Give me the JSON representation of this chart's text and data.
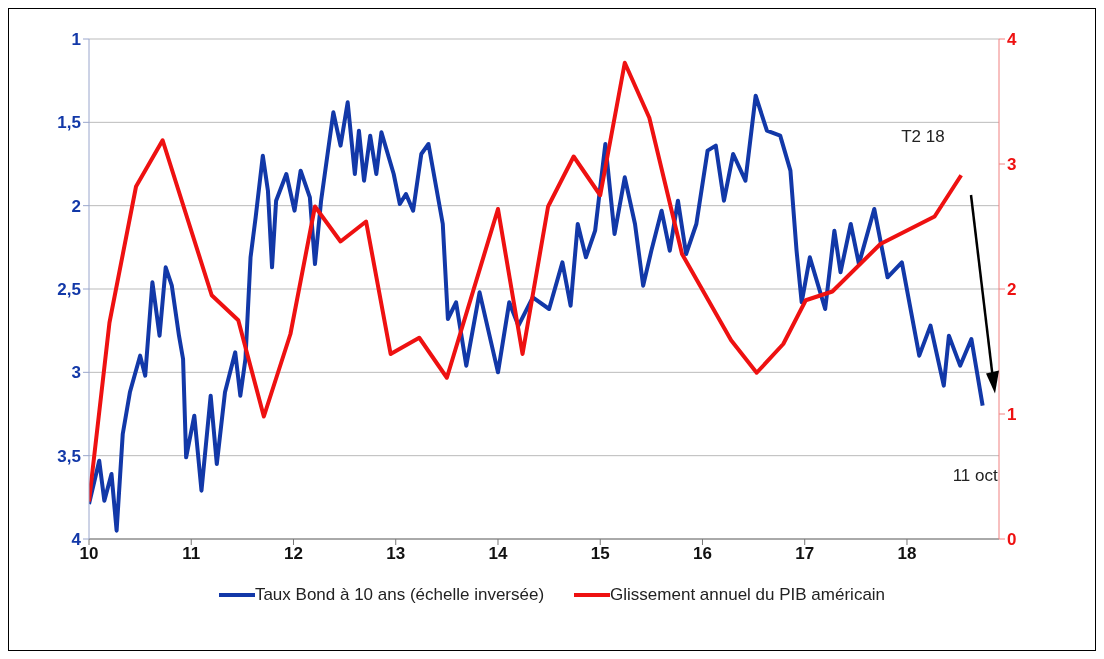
{
  "chart_data": {
    "type": "line",
    "xlim": [
      10,
      18.9
    ],
    "xticks": [
      10,
      11,
      12,
      13,
      14,
      15,
      16,
      17,
      18
    ],
    "ylim": [
      4,
      1
    ],
    "yticks": [
      1,
      {
        "value": 1.5,
        "label": "1,5"
      },
      2,
      {
        "value": 2.5,
        "label": "2,5"
      },
      3,
      {
        "value": 3.5,
        "label": "3,5"
      },
      4
    ],
    "y2lim": [
      0,
      4
    ],
    "y2ticks": [
      0,
      1,
      2,
      3,
      4
    ],
    "grid": "y",
    "legend": "bottom",
    "annotations": [
      "T2 18",
      "11 oct"
    ],
    "series": [
      {
        "name": "Taux Bond à 10 ans (échelle inversée)",
        "color": "#1238a8",
        "x": [
          10.0,
          10.1,
          10.15,
          10.22,
          10.27,
          10.33,
          10.4,
          10.5,
          10.55,
          10.62,
          10.69,
          10.75,
          10.81,
          10.88,
          10.92,
          10.95,
          11.03,
          11.1,
          11.19,
          11.25,
          11.33,
          11.43,
          11.48,
          11.53,
          11.58,
          11.63,
          11.7,
          11.75,
          11.79,
          11.83,
          11.93,
          12.01,
          12.07,
          12.16,
          12.21,
          12.27,
          12.39,
          12.46,
          12.53,
          12.6,
          12.64,
          12.69,
          12.75,
          12.81,
          12.86,
          12.98,
          13.04,
          13.1,
          13.17,
          13.25,
          13.32,
          13.46,
          13.51,
          13.59,
          13.69,
          13.82,
          14.0,
          14.11,
          14.2,
          14.34,
          14.5,
          14.63,
          14.71,
          14.78,
          14.86,
          14.95,
          15.05,
          15.14,
          15.24,
          15.34,
          15.42,
          15.5,
          15.6,
          15.68,
          15.76,
          15.84,
          15.94,
          16.05,
          16.13,
          16.21,
          16.3,
          16.42,
          16.52,
          16.63,
          16.76,
          16.86,
          16.92,
          16.97,
          17.05,
          17.2,
          17.29,
          17.35,
          17.45,
          17.53,
          17.68,
          17.81,
          17.95,
          18.12,
          18.23,
          18.36,
          18.41,
          18.52,
          18.63,
          18.74
        ],
        "values": [
          3.79,
          3.53,
          3.77,
          3.61,
          3.95,
          3.37,
          3.12,
          2.9,
          3.02,
          2.46,
          2.78,
          2.37,
          2.48,
          2.78,
          2.92,
          3.51,
          3.26,
          3.71,
          3.14,
          3.55,
          3.12,
          2.88,
          3.14,
          2.92,
          2.31,
          2.07,
          1.7,
          1.91,
          2.37,
          1.97,
          1.81,
          2.03,
          1.79,
          1.95,
          2.35,
          1.97,
          1.44,
          1.64,
          1.38,
          1.81,
          1.55,
          1.85,
          1.58,
          1.81,
          1.56,
          1.81,
          1.99,
          1.93,
          2.03,
          1.69,
          1.63,
          2.11,
          2.68,
          2.58,
          2.96,
          2.52,
          3.0,
          2.58,
          2.72,
          2.55,
          2.62,
          2.34,
          2.6,
          2.11,
          2.31,
          2.15,
          1.63,
          2.17,
          1.83,
          2.11,
          2.48,
          2.27,
          2.03,
          2.27,
          1.97,
          2.29,
          2.11,
          1.67,
          1.64,
          1.97,
          1.69,
          1.85,
          1.34,
          1.55,
          1.58,
          1.79,
          2.27,
          2.58,
          2.31,
          2.62,
          2.15,
          2.4,
          2.11,
          2.35,
          2.02,
          2.43,
          2.34,
          2.9,
          2.72,
          3.08,
          2.78,
          2.96,
          2.8,
          3.2
        ]
      },
      {
        "name": "Glissement annuel du PIB américain",
        "color": "#ee1111",
        "axis": "y2",
        "x": [
          10.0,
          10.2,
          10.46,
          10.72,
          11.2,
          11.46,
          11.71,
          11.97,
          12.21,
          12.46,
          12.71,
          12.95,
          13.23,
          13.5,
          14.0,
          14.24,
          14.49,
          14.74,
          15.0,
          15.24,
          15.48,
          15.8,
          16.28,
          16.53,
          16.79,
          17.01,
          17.27,
          17.74,
          18.27,
          18.53
        ],
        "values": [
          0.3,
          1.73,
          2.82,
          3.19,
          1.95,
          1.75,
          0.98,
          1.64,
          2.66,
          2.38,
          2.54,
          1.48,
          1.61,
          1.29,
          2.64,
          1.48,
          2.66,
          3.06,
          2.75,
          3.81,
          3.37,
          2.28,
          1.59,
          1.33,
          1.56,
          1.91,
          1.98,
          2.36,
          2.58,
          2.91
        ]
      }
    ]
  }
}
